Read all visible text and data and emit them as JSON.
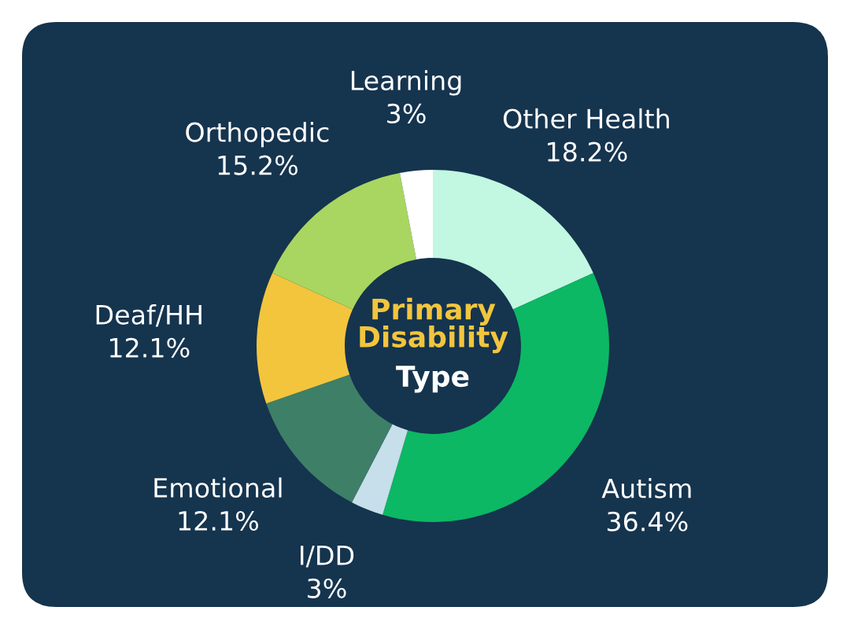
{
  "chart_data": {
    "type": "donut",
    "title": "Primary Disability",
    "subtitle": "Type",
    "categories": [
      "Other Health",
      "Autism",
      "I/DD",
      "Emotional",
      "Deaf/HH",
      "Orthopedic",
      "Learning"
    ],
    "values": [
      18.2,
      36.4,
      3,
      12.1,
      12.1,
      15.2,
      3
    ],
    "value_labels": [
      "18.2%",
      "36.4%",
      "3%",
      "12.1%",
      "12.1%",
      "15.2%",
      "3%"
    ],
    "colors": [
      "#c2f7e2",
      "#0cb863",
      "#c6dfea",
      "#3e7f68",
      "#f2c53d",
      "#a9d660",
      "#ffffff"
    ],
    "legend": false
  }
}
